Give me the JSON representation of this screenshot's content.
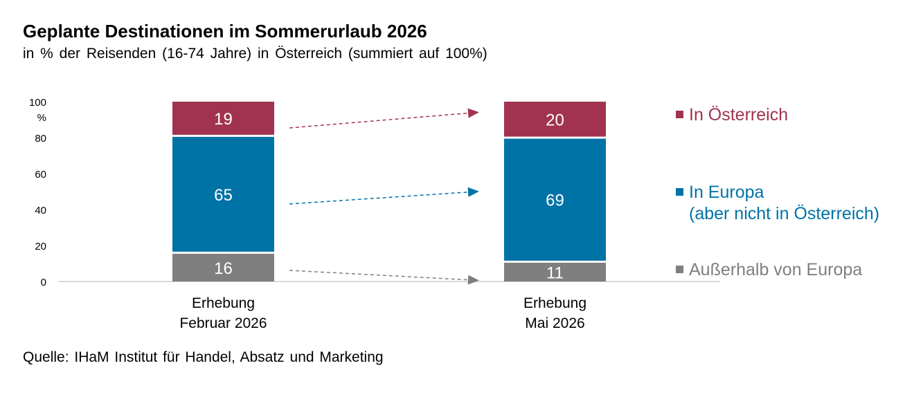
{
  "title": "Geplante Destinationen im Sommerurlaub 2026",
  "subtitle": "in % der Reisenden (16-74 Jahre) in Österreich (summiert auf 100%)",
  "source": "Quelle: IHaM Institut für Handel, Absatz und Marketing",
  "chart_data": {
    "type": "bar",
    "stacked": true,
    "categories": [
      [
        "Erhebung",
        "Februar 2026"
      ],
      [
        "Erhebung",
        "Mai 2026"
      ]
    ],
    "series": [
      {
        "name": "Außerhalb von Europa",
        "values": [
          16,
          11
        ],
        "color": "#7f7f7f"
      },
      {
        "name": "In Europa (aber nicht in Österreich)",
        "legend_lines": [
          "In Europa",
          "(aber nicht in Österreich)"
        ],
        "values": [
          65,
          69
        ],
        "color": "#0073a6"
      },
      {
        "name": "In Österreich",
        "values": [
          19,
          20
        ],
        "color": "#a13350"
      }
    ],
    "ylim": [
      0,
      100
    ],
    "yticks": [
      0,
      20,
      40,
      60,
      80,
      100
    ],
    "yunit": "%",
    "grid": false,
    "legend_position": "right",
    "trend_arrows": true
  }
}
